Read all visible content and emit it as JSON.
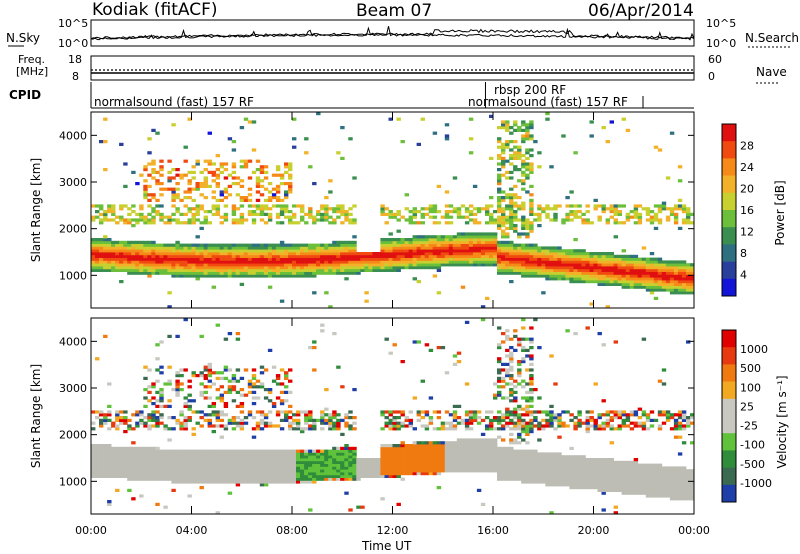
{
  "header": {
    "station": "Kodiak (fitACF)",
    "beam": "Beam 07",
    "date": "06/Apr/2014"
  },
  "noise_panel": {
    "left_label": "N.Sky",
    "right_label": "N.Search",
    "left_ticks": [
      "10^5",
      "10^0"
    ],
    "right_ticks": [
      "10^5",
      "10^0"
    ]
  },
  "freq_panel": {
    "left_label_1": "Freq.",
    "left_label_2": "[MHz]",
    "right_label": "Nave",
    "left_ticks": [
      "18",
      "8"
    ],
    "right_ticks": [
      "60",
      "0"
    ],
    "cpid_label": "CPID",
    "cpid_entries": [
      {
        "label": "normalsound (fast) 157 RF",
        "start_hour": 0,
        "row": 1
      },
      {
        "label": "rbsp 200 RF",
        "start_hour": 15.7,
        "row": 0
      },
      {
        "label": "normalsound (fast) 157 RF",
        "start_hour": 15.7,
        "row": 1
      }
    ]
  },
  "chart_data": [
    {
      "type": "heatmap",
      "name": "power-panel",
      "ylabel": "Slant Range [km]",
      "xlabel": "",
      "x_ticks": [
        "00:00",
        "04:00",
        "08:00",
        "12:00",
        "16:00",
        "20:00",
        "00:00"
      ],
      "xlim_hours": [
        0,
        24
      ],
      "ylim": [
        300,
        4500
      ],
      "y_ticks": [
        1000,
        2000,
        3000,
        4000
      ],
      "colorbar": {
        "label": "Power [dB]",
        "ticks": [
          "4",
          "8",
          "12",
          "16",
          "20",
          "24",
          "28"
        ],
        "colors": [
          "#1414d8",
          "#2a3f9c",
          "#2e6f80",
          "#3a8f50",
          "#6bbf3a",
          "#c8d030",
          "#f2b128",
          "#f58a18",
          "#f04a10",
          "#e01010"
        ]
      }
    },
    {
      "type": "heatmap",
      "name": "velocity-panel",
      "ylabel": "Slant Range [km]",
      "xlabel": "Time UT",
      "x_ticks": [
        "00:00",
        "04:00",
        "08:00",
        "12:00",
        "16:00",
        "20:00",
        "00:00"
      ],
      "xlim_hours": [
        0,
        24
      ],
      "ylim": [
        300,
        4500
      ],
      "y_ticks": [
        1000,
        2000,
        3000,
        4000
      ],
      "colorbar": {
        "label": "Velocity [m s⁻¹]",
        "ticks": [
          "1000",
          "500",
          "100",
          "25",
          "-25",
          "-100",
          "-500",
          "-1000"
        ],
        "colors": [
          "#1f3fa8",
          "#3a6a50",
          "#2e8c3a",
          "#5fc23a",
          "#c8c8c0",
          "#c8c8c0",
          "#f2a820",
          "#f07a10",
          "#e83a10",
          "#e00000"
        ]
      }
    }
  ],
  "colors": {
    "ground_scatter": "#bdbdb5"
  }
}
